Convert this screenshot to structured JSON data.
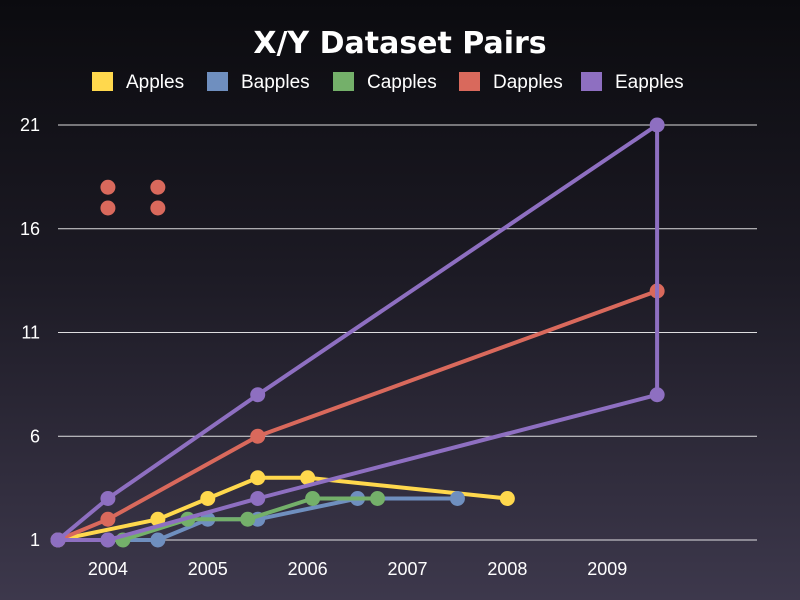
{
  "chart_data": {
    "type": "line",
    "title": "X/Y Dataset Pairs",
    "xlabel": "",
    "ylabel": "",
    "x_ticks": [
      "2004",
      "2005",
      "2006",
      "2007",
      "2008",
      "2009"
    ],
    "y_ticks": [
      1,
      6,
      11,
      16,
      21
    ],
    "xlim": [
      2003.5,
      2010.5
    ],
    "ylim": [
      1,
      21
    ],
    "grid": "horizontal",
    "legend_position": "top",
    "series": [
      {
        "name": "Apples",
        "color": "#ffd84d",
        "style": "line",
        "points": [
          [
            2003.5,
            1
          ],
          [
            2004.5,
            2
          ],
          [
            2005,
            3
          ],
          [
            2005.5,
            4
          ],
          [
            2006,
            4
          ],
          [
            2008,
            3
          ]
        ]
      },
      {
        "name": "Bapples",
        "color": "#6f8fbf",
        "style": "line",
        "points": [
          [
            2003.5,
            1
          ],
          [
            2004,
            1
          ],
          [
            2004.5,
            1
          ],
          [
            2005,
            2
          ],
          [
            2005.5,
            2
          ],
          [
            2006.5,
            3
          ],
          [
            2007.5,
            3
          ]
        ]
      },
      {
        "name": "Capples",
        "color": "#74b06a",
        "style": "line",
        "points": [
          [
            2003.5,
            1
          ],
          [
            2004.15,
            1
          ],
          [
            2004.8,
            2
          ],
          [
            2005.4,
            2
          ],
          [
            2006.05,
            3
          ],
          [
            2006.7,
            3
          ]
        ]
      },
      {
        "name": "Dapples",
        "color": "#d9695c",
        "style": "mixed",
        "line_points": [
          [
            2003.5,
            1
          ],
          [
            2004,
            2
          ],
          [
            2005.5,
            6
          ],
          [
            2009.5,
            13
          ]
        ],
        "scatter_points": [
          [
            2004,
            18
          ],
          [
            2004.5,
            18
          ],
          [
            2004,
            17
          ],
          [
            2004.5,
            17
          ]
        ]
      },
      {
        "name": "Eapples",
        "color": "#8e6fc1",
        "style": "line",
        "points": [
          [
            2003.5,
            1
          ],
          [
            2004,
            3
          ],
          [
            2005.5,
            8
          ],
          [
            2009.5,
            21
          ],
          [
            2009.5,
            8
          ],
          [
            2005.5,
            3
          ],
          [
            2004,
            1
          ],
          [
            2003.5,
            1
          ]
        ]
      }
    ]
  }
}
